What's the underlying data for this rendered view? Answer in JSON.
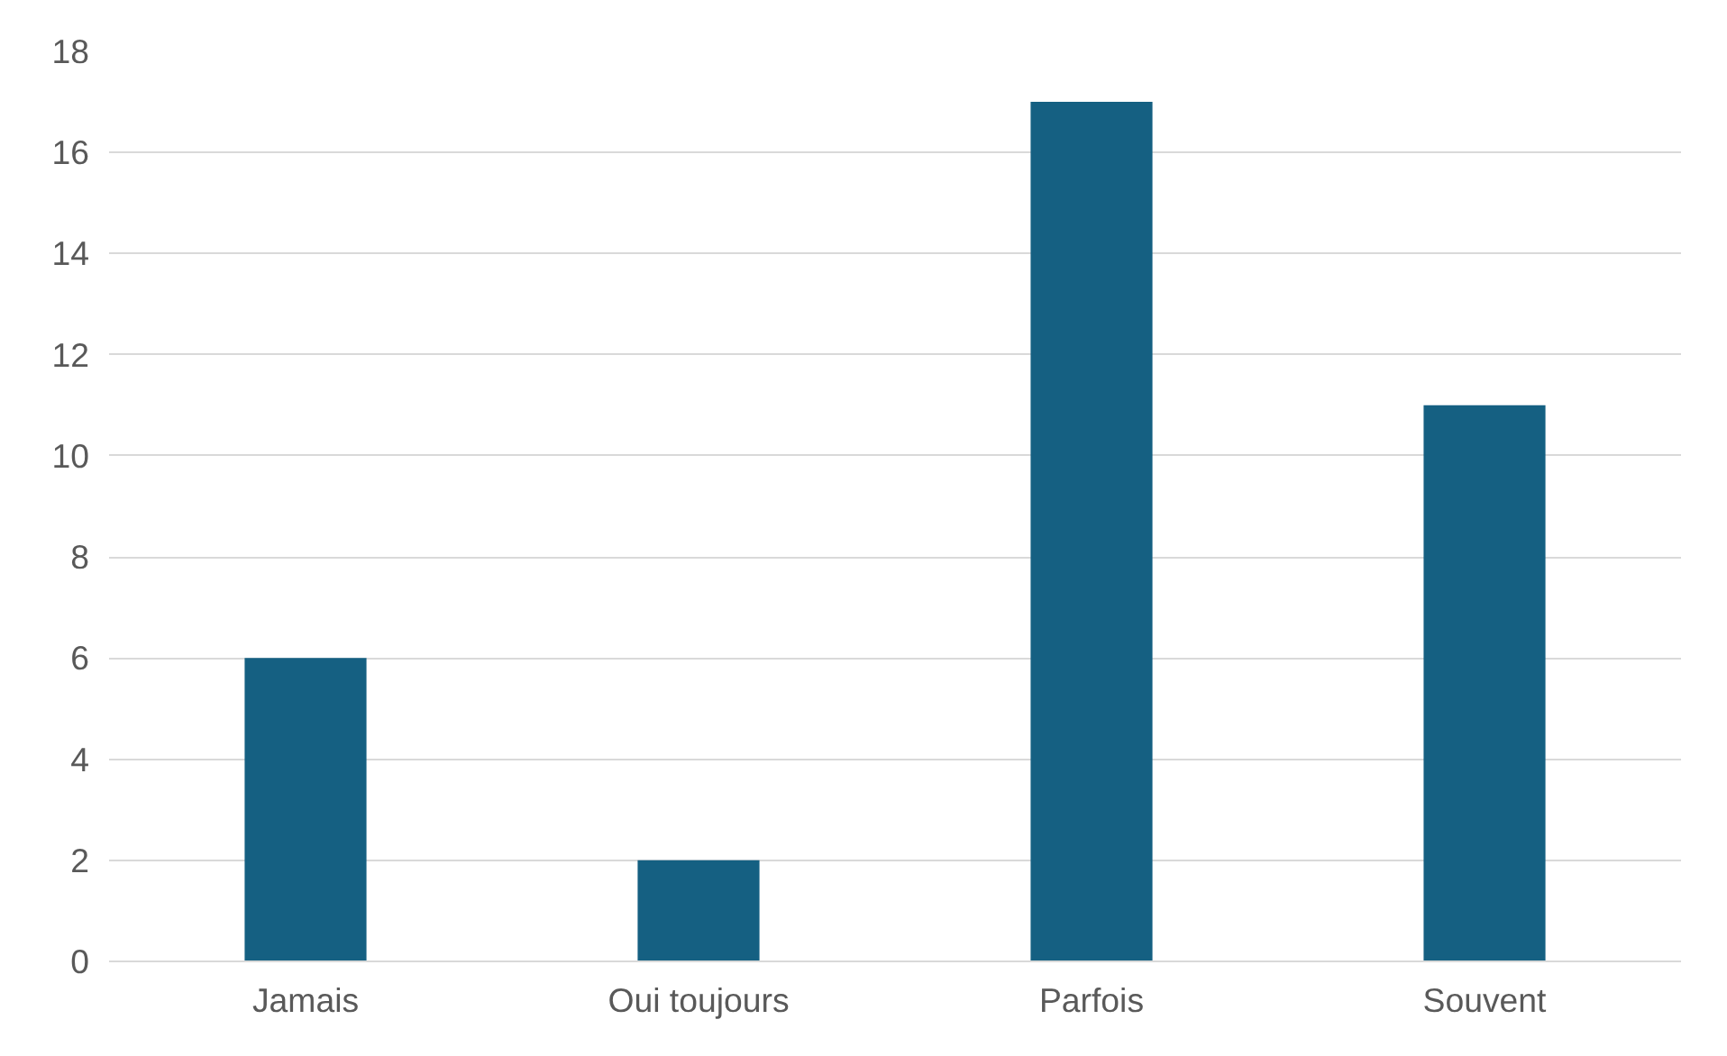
{
  "chart_data": {
    "type": "bar",
    "categories": [
      "Jamais",
      "Oui toujours",
      "Parfois",
      "Souvent"
    ],
    "values": [
      6,
      2,
      17,
      11
    ],
    "color": "#156082",
    "ylim": [
      0,
      18
    ],
    "yticks": [
      0,
      2,
      4,
      6,
      8,
      10,
      12,
      14,
      16,
      18
    ],
    "grid": "y"
  }
}
